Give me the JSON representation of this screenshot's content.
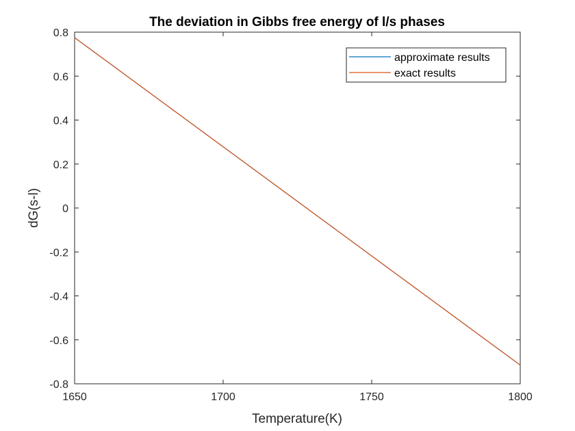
{
  "chart_data": {
    "type": "line",
    "title": "The deviation in Gibbs free energy of l/s phases",
    "xlabel": "Temperature(K)",
    "ylabel": "dG(s-l)",
    "xlim": [
      1650,
      1800
    ],
    "ylim": [
      -0.8,
      0.8
    ],
    "xticks": [
      1650,
      1700,
      1750,
      1800
    ],
    "yticks": [
      -0.8,
      -0.6,
      -0.4,
      -0.2,
      0,
      0.2,
      0.4,
      0.6,
      0.8
    ],
    "xtick_labels": [
      "1650",
      "1700",
      "1750",
      "1800"
    ],
    "ytick_labels": [
      "-0.8",
      "-0.6",
      "-0.4",
      "-0.2",
      "0",
      "0.2",
      "0.4",
      "0.6",
      "0.8"
    ],
    "grid": false,
    "legend_position": "top-right",
    "series": [
      {
        "name": "approximate results",
        "color": "#0072BD",
        "x": [
          1650,
          1800
        ],
        "y": [
          0.775,
          -0.715
        ]
      },
      {
        "name": "exact results",
        "color": "#D95319",
        "x": [
          1650,
          1800
        ],
        "y": [
          0.775,
          -0.715
        ]
      }
    ]
  }
}
